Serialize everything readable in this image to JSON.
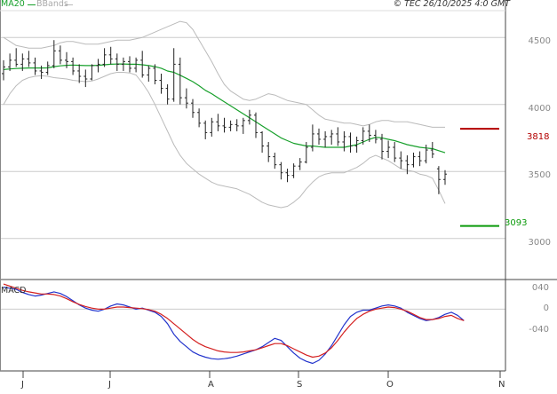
{
  "legend": {
    "ma_label": "MA20",
    "bb_label": "BBands",
    "ma_color": "#17a02b",
    "bb_color": "#bbbbbb"
  },
  "copyright": "© TEC 26/10/2025 4:0 GMT",
  "levels": {
    "resistance": "3818",
    "support": "3093",
    "resistance_color": "#b30000",
    "support_color": "#0a9a0a"
  },
  "macd_label": "MACD",
  "chart_data": [
    {
      "type": "line",
      "title": "",
      "ylim": [
        2700,
        4700
      ],
      "y_ticks": [
        {
          "value": 4500,
          "label": "4500"
        },
        {
          "value": 4000,
          "label": "4000"
        },
        {
          "value": 3500,
          "label": "3500"
        },
        {
          "value": 3000,
          "label": "3000"
        }
      ],
      "x_labels": [
        "J",
        "J",
        "A",
        "S",
        "O",
        "N"
      ],
      "horizontal_levels": [
        {
          "name": "resistance",
          "value": 3818
        },
        {
          "name": "support",
          "value": 3093
        }
      ],
      "price_bars": [
        {
          "x": 0,
          "o": 4230,
          "h": 4330,
          "l": 4180,
          "c": 4280
        },
        {
          "x": 1,
          "o": 4280,
          "h": 4380,
          "l": 4250,
          "c": 4330
        },
        {
          "x": 2,
          "o": 4330,
          "h": 4420,
          "l": 4280,
          "c": 4300
        },
        {
          "x": 3,
          "o": 4300,
          "h": 4380,
          "l": 4250,
          "c": 4340
        },
        {
          "x": 4,
          "o": 4340,
          "h": 4400,
          "l": 4280,
          "c": 4310
        },
        {
          "x": 5,
          "o": 4310,
          "h": 4350,
          "l": 4220,
          "c": 4250
        },
        {
          "x": 6,
          "o": 4250,
          "h": 4290,
          "l": 4190,
          "c": 4240
        },
        {
          "x": 7,
          "o": 4240,
          "h": 4320,
          "l": 4220,
          "c": 4290
        },
        {
          "x": 8,
          "o": 4290,
          "h": 4480,
          "l": 4270,
          "c": 4400
        },
        {
          "x": 9,
          "o": 4400,
          "h": 4440,
          "l": 4300,
          "c": 4330
        },
        {
          "x": 10,
          "o": 4330,
          "h": 4390,
          "l": 4270,
          "c": 4320
        },
        {
          "x": 11,
          "o": 4320,
          "h": 4350,
          "l": 4220,
          "c": 4250
        },
        {
          "x": 12,
          "o": 4250,
          "h": 4300,
          "l": 4160,
          "c": 4210
        },
        {
          "x": 13,
          "o": 4210,
          "h": 4260,
          "l": 4130,
          "c": 4190
        },
        {
          "x": 14,
          "o": 4190,
          "h": 4300,
          "l": 4180,
          "c": 4290
        },
        {
          "x": 15,
          "o": 4290,
          "h": 4340,
          "l": 4240,
          "c": 4300
        },
        {
          "x": 16,
          "o": 4300,
          "h": 4420,
          "l": 4280,
          "c": 4370
        },
        {
          "x": 17,
          "o": 4370,
          "h": 4430,
          "l": 4300,
          "c": 4340
        },
        {
          "x": 18,
          "o": 4340,
          "h": 4380,
          "l": 4250,
          "c": 4300
        },
        {
          "x": 19,
          "o": 4300,
          "h": 4350,
          "l": 4250,
          "c": 4320
        },
        {
          "x": 20,
          "o": 4320,
          "h": 4360,
          "l": 4240,
          "c": 4270
        },
        {
          "x": 21,
          "o": 4270,
          "h": 4350,
          "l": 4240,
          "c": 4330
        },
        {
          "x": 22,
          "o": 4330,
          "h": 4400,
          "l": 4200,
          "c": 4220
        },
        {
          "x": 23,
          "o": 4220,
          "h": 4290,
          "l": 4170,
          "c": 4270
        },
        {
          "x": 24,
          "o": 4270,
          "h": 4300,
          "l": 4150,
          "c": 4180
        },
        {
          "x": 25,
          "o": 4180,
          "h": 4230,
          "l": 4080,
          "c": 4120
        },
        {
          "x": 26,
          "o": 4120,
          "h": 4150,
          "l": 4000,
          "c": 4040
        },
        {
          "x": 27,
          "o": 4040,
          "h": 4420,
          "l": 4020,
          "c": 4300
        },
        {
          "x": 28,
          "o": 4300,
          "h": 4350,
          "l": 4000,
          "c": 4050
        },
        {
          "x": 29,
          "o": 4050,
          "h": 4120,
          "l": 3970,
          "c": 4010
        },
        {
          "x": 30,
          "o": 4010,
          "h": 4040,
          "l": 3900,
          "c": 3940
        },
        {
          "x": 31,
          "o": 3940,
          "h": 3970,
          "l": 3830,
          "c": 3860
        },
        {
          "x": 32,
          "o": 3860,
          "h": 3880,
          "l": 3740,
          "c": 3790
        },
        {
          "x": 33,
          "o": 3790,
          "h": 3900,
          "l": 3760,
          "c": 3870
        },
        {
          "x": 34,
          "o": 3870,
          "h": 3930,
          "l": 3800,
          "c": 3840
        },
        {
          "x": 35,
          "o": 3840,
          "h": 3900,
          "l": 3790,
          "c": 3830
        },
        {
          "x": 36,
          "o": 3830,
          "h": 3880,
          "l": 3800,
          "c": 3850
        },
        {
          "x": 37,
          "o": 3850,
          "h": 3890,
          "l": 3800,
          "c": 3840
        },
        {
          "x": 38,
          "o": 3840,
          "h": 3900,
          "l": 3780,
          "c": 3880
        },
        {
          "x": 39,
          "o": 3880,
          "h": 3960,
          "l": 3850,
          "c": 3920
        },
        {
          "x": 40,
          "o": 3920,
          "h": 3940,
          "l": 3750,
          "c": 3790
        },
        {
          "x": 41,
          "o": 3790,
          "h": 3800,
          "l": 3640,
          "c": 3690
        },
        {
          "x": 42,
          "o": 3690,
          "h": 3720,
          "l": 3570,
          "c": 3610
        },
        {
          "x": 43,
          "o": 3610,
          "h": 3640,
          "l": 3520,
          "c": 3550
        },
        {
          "x": 44,
          "o": 3550,
          "h": 3570,
          "l": 3440,
          "c": 3490
        },
        {
          "x": 45,
          "o": 3490,
          "h": 3520,
          "l": 3420,
          "c": 3470
        },
        {
          "x": 46,
          "o": 3470,
          "h": 3560,
          "l": 3450,
          "c": 3540
        },
        {
          "x": 47,
          "o": 3540,
          "h": 3600,
          "l": 3510,
          "c": 3570
        },
        {
          "x": 48,
          "o": 3570,
          "h": 3720,
          "l": 3560,
          "c": 3680
        },
        {
          "x": 49,
          "o": 3680,
          "h": 3850,
          "l": 3650,
          "c": 3780
        },
        {
          "x": 50,
          "o": 3780,
          "h": 3820,
          "l": 3700,
          "c": 3740
        },
        {
          "x": 51,
          "o": 3740,
          "h": 3800,
          "l": 3680,
          "c": 3760
        },
        {
          "x": 52,
          "o": 3760,
          "h": 3810,
          "l": 3700,
          "c": 3780
        },
        {
          "x": 53,
          "o": 3780,
          "h": 3830,
          "l": 3690,
          "c": 3720
        },
        {
          "x": 54,
          "o": 3720,
          "h": 3800,
          "l": 3650,
          "c": 3760
        },
        {
          "x": 55,
          "o": 3760,
          "h": 3790,
          "l": 3640,
          "c": 3690
        },
        {
          "x": 56,
          "o": 3690,
          "h": 3760,
          "l": 3640,
          "c": 3730
        },
        {
          "x": 57,
          "o": 3730,
          "h": 3830,
          "l": 3700,
          "c": 3800
        },
        {
          "x": 58,
          "o": 3800,
          "h": 3850,
          "l": 3720,
          "c": 3770
        },
        {
          "x": 59,
          "o": 3770,
          "h": 3810,
          "l": 3710,
          "c": 3740
        },
        {
          "x": 60,
          "o": 3740,
          "h": 3780,
          "l": 3590,
          "c": 3650
        },
        {
          "x": 61,
          "o": 3650,
          "h": 3730,
          "l": 3600,
          "c": 3680
        },
        {
          "x": 62,
          "o": 3680,
          "h": 3720,
          "l": 3570,
          "c": 3600
        },
        {
          "x": 63,
          "o": 3600,
          "h": 3650,
          "l": 3520,
          "c": 3580
        },
        {
          "x": 64,
          "o": 3580,
          "h": 3620,
          "l": 3480,
          "c": 3550
        },
        {
          "x": 65,
          "o": 3550,
          "h": 3640,
          "l": 3530,
          "c": 3610
        },
        {
          "x": 66,
          "o": 3610,
          "h": 3650,
          "l": 3540,
          "c": 3580
        },
        {
          "x": 67,
          "o": 3580,
          "h": 3700,
          "l": 3560,
          "c": 3660
        },
        {
          "x": 68,
          "o": 3660,
          "h": 3720,
          "l": 3600,
          "c": 3630
        },
        {
          "x": 69,
          "o": 3520,
          "h": 3540,
          "l": 3330,
          "c": 3440
        },
        {
          "x": 70,
          "o": 3440,
          "h": 3510,
          "l": 3400,
          "c": 3480
        }
      ],
      "series": [
        {
          "name": "MA20",
          "color": "#17a02b",
          "values": [
            4260,
            4265,
            4268,
            4270,
            4272,
            4272,
            4272,
            4273,
            4282,
            4288,
            4292,
            4294,
            4292,
            4290,
            4290,
            4292,
            4296,
            4300,
            4302,
            4302,
            4300,
            4300,
            4296,
            4290,
            4282,
            4270,
            4250,
            4240,
            4218,
            4195,
            4170,
            4140,
            4105,
            4080,
            4050,
            4020,
            3990,
            3960,
            3930,
            3900,
            3870,
            3840,
            3810,
            3780,
            3750,
            3730,
            3710,
            3700,
            3690,
            3690,
            3685,
            3680,
            3680,
            3680,
            3680,
            3690,
            3700,
            3720,
            3740,
            3755,
            3750,
            3740,
            3730,
            3715,
            3700,
            3690,
            3680,
            3675,
            3670,
            3655,
            3640
          ]
        },
        {
          "name": "BBands",
          "color": "#bbbbbb",
          "values": [
            4000,
            4080,
            4140,
            4180,
            4200,
            4210,
            4215,
            4210,
            4200,
            4195,
            4190,
            4180,
            4175,
            4170,
            4175,
            4190,
            4210,
            4230,
            4240,
            4240,
            4235,
            4220,
            4160,
            4090,
            4000,
            3900,
            3800,
            3700,
            3620,
            3560,
            3520,
            3480,
            3450,
            3420,
            3400,
            3390,
            3380,
            3370,
            3350,
            3330,
            3300,
            3270,
            3250,
            3240,
            3230,
            3240,
            3270,
            3310,
            3370,
            3420,
            3460,
            3480,
            3490,
            3490,
            3490,
            3510,
            3530,
            3560,
            3600,
            3620,
            3600,
            3580,
            3550,
            3520,
            3510,
            3500,
            3480,
            3470,
            3450,
            3360,
            3260
          ]
        },
        {
          "name": "BBands upper",
          "color": "#bbbbbb",
          "values": [
            4500,
            4470,
            4440,
            4430,
            4420,
            4420,
            4420,
            4430,
            4440,
            4460,
            4470,
            4470,
            4460,
            4450,
            4450,
            4450,
            4460,
            4470,
            4480,
            4480,
            4480,
            4490,
            4500,
            4520,
            4540,
            4560,
            4580,
            4600,
            4620,
            4610,
            4560,
            4480,
            4400,
            4320,
            4230,
            4150,
            4100,
            4070,
            4040,
            4030,
            4040,
            4060,
            4080,
            4070,
            4050,
            4030,
            4020,
            4010,
            4000,
            3960,
            3920,
            3890,
            3880,
            3870,
            3860,
            3860,
            3850,
            3840,
            3850,
            3870,
            3880,
            3880,
            3870,
            3870,
            3870,
            3860,
            3850,
            3840,
            3830,
            3830,
            3830
          ]
        }
      ]
    },
    {
      "type": "line",
      "title": "MACD",
      "ylim": [
        -115,
        55
      ],
      "y_ticks": [
        {
          "value": 40,
          "label": "040"
        },
        {
          "value": 0,
          "label": "0"
        },
        {
          "value": -40,
          "label": "-040"
        }
      ],
      "series": [
        {
          "name": "MACD",
          "color": "#2233cc",
          "values": [
            42,
            40,
            38,
            32,
            28,
            25,
            27,
            30,
            33,
            30,
            24,
            16,
            8,
            2,
            -2,
            -4,
            0,
            6,
            10,
            8,
            4,
            0,
            2,
            -2,
            -6,
            -14,
            -28,
            -48,
            -62,
            -72,
            -82,
            -88,
            -92,
            -95,
            -96,
            -95,
            -93,
            -90,
            -86,
            -82,
            -78,
            -72,
            -64,
            -56,
            -60,
            -72,
            -84,
            -94,
            -100,
            -104,
            -98,
            -86,
            -70,
            -50,
            -30,
            -14,
            -6,
            -2,
            -2,
            2,
            6,
            8,
            6,
            2,
            -6,
            -12,
            -18,
            -22,
            -20,
            -16,
            -10,
            -6,
            -12,
            -22
          ]
        },
        {
          "name": "Signal",
          "color": "#d42020",
          "values": [
            48,
            44,
            40,
            36,
            33,
            31,
            29,
            29,
            28,
            25,
            20,
            14,
            9,
            5,
            2,
            0,
            0,
            2,
            4,
            4,
            3,
            2,
            1,
            -1,
            -4,
            -10,
            -18,
            -28,
            -38,
            -48,
            -58,
            -66,
            -72,
            -76,
            -80,
            -82,
            -83,
            -83,
            -82,
            -80,
            -78,
            -74,
            -70,
            -66,
            -66,
            -70,
            -76,
            -82,
            -88,
            -92,
            -90,
            -84,
            -74,
            -60,
            -44,
            -30,
            -18,
            -10,
            -4,
            0,
            2,
            4,
            3,
            0,
            -4,
            -10,
            -16,
            -20,
            -20,
            -18,
            -14,
            -12,
            -18,
            -22
          ]
        }
      ]
    }
  ]
}
